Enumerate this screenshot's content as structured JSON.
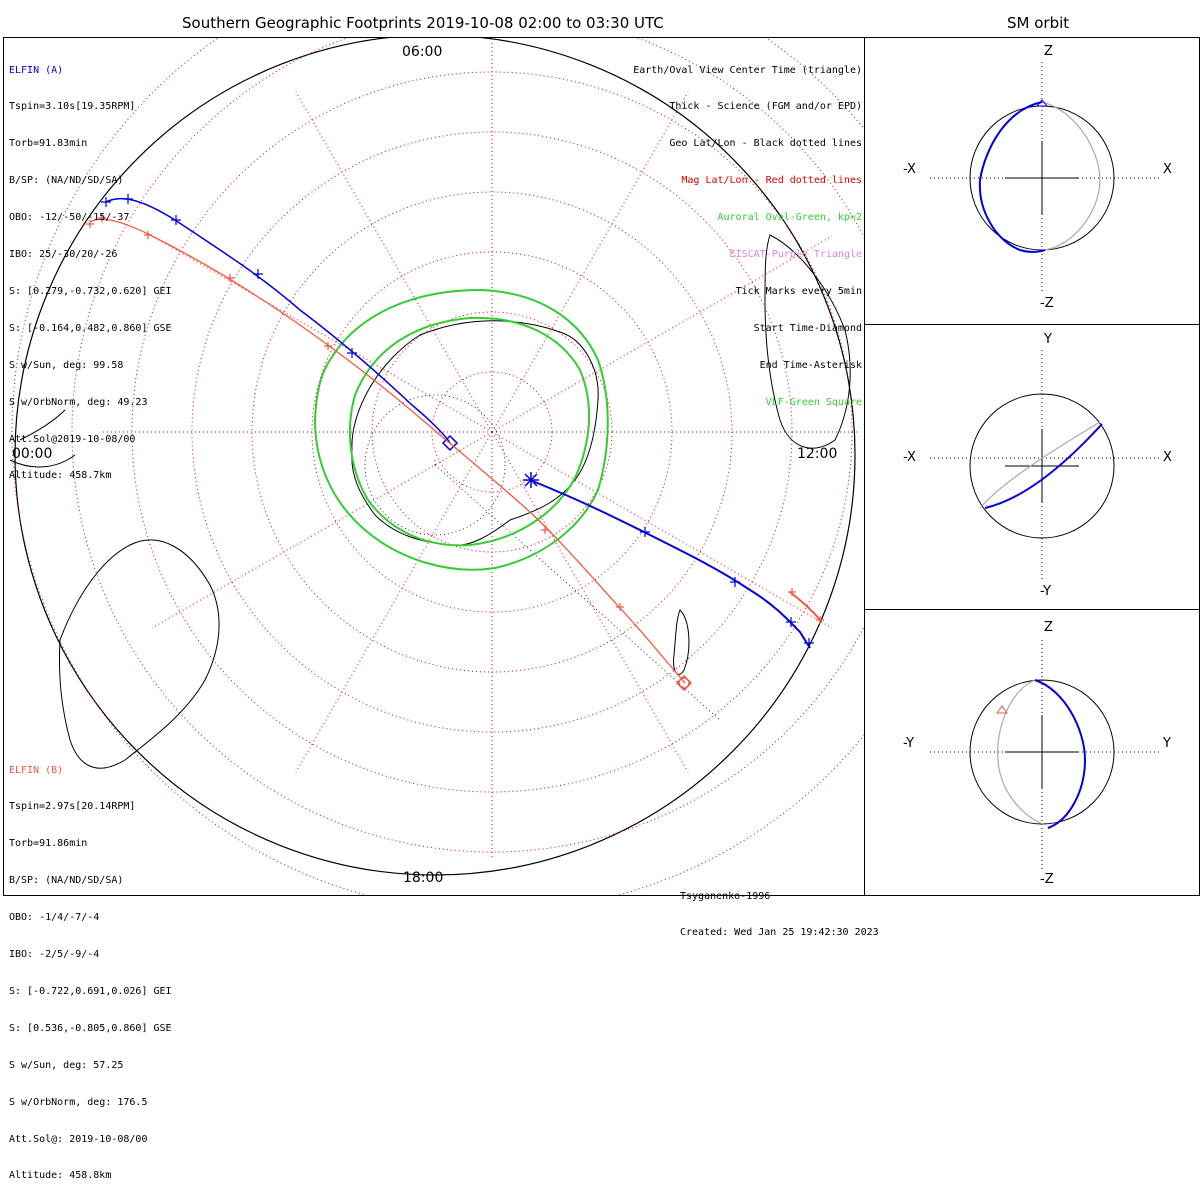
{
  "titles": {
    "main": "Southern Geographic Footprints 2019-10-08 02:00 to 03:30 UTC",
    "sm": "SM orbit"
  },
  "elfin_a": {
    "name": "ELFIN (A)",
    "lines": [
      "Tspin=3.10s[19.35RPM]",
      "Torb=91.83min",
      "B/SP: (NA/ND/SD/SA)",
      "OBO: -12/-50/-15/-37",
      "IBO: 25/-30/20/-26",
      "S: [0.279,-0.732,0.620] GEI",
      "S: [-0.164,0.482,0.860] GSE",
      "S w/Sun, deg: 99.58",
      "S w/OrbNorm, deg: 49.23",
      "Att.Sol@2019-10-08/00",
      "Altitude: 458.7km"
    ]
  },
  "elfin_b": {
    "name": "ELFIN (B)",
    "lines": [
      "Tspin=2.97s[20.14RPM]",
      "Torb=91.86min",
      "B/SP: (NA/ND/SD/SA)",
      "OBO: -1/4/-7/-4",
      "IBO: -2/5/-9/-4",
      "S: [-0.722,0.691,0.026] GEI",
      "S: [0.536,-0.805,0.860] GSE",
      "S w/Sun, deg: 57.25",
      "S w/OrbNorm, deg: 176.5",
      "Att.Sol@: 2019-10-08/00",
      "Altitude: 458.8km"
    ]
  },
  "legend": [
    {
      "text": "Earth/Oval View Center Time (triangle)",
      "color": "#000000"
    },
    {
      "text": "Thick - Science (FGM and/or EPD)",
      "color": "#000000"
    },
    {
      "text": "Geo Lat/Lon - Black dotted lines",
      "color": "#000000"
    },
    {
      "text": "Mag Lat/Lon - Red dotted lines",
      "color": "#e00000"
    },
    {
      "text": "Auroral Oval-Green, kp=2",
      "color": "#33cc33"
    },
    {
      "text": "EISCAT-Purple Triangle",
      "color": "#e080e0"
    },
    {
      "text": "Tick Marks every 5min",
      "color": "#000000"
    },
    {
      "text": "Start Time-Diamond",
      "color": "#000000"
    },
    {
      "text": "End Time-Asterisk",
      "color": "#000000"
    },
    {
      "text": "VLF-Green Square",
      "color": "#33cc33"
    }
  ],
  "clock_labels": {
    "top": "06:00",
    "left": "00:00",
    "right": "12:00",
    "bottom": "18:00"
  },
  "footer": {
    "model": "Tsyganenko-1996",
    "created": "Created: Wed Jan 25 19:42:30 2023"
  },
  "sm_panels": [
    {
      "top": "Z",
      "bottom": "-Z",
      "left": "-X",
      "right": "X"
    },
    {
      "top": "Y",
      "bottom": "-Y",
      "left": "-X",
      "right": "X"
    },
    {
      "top": "Z",
      "bottom": "-Z",
      "left": "-Y",
      "right": "Y"
    }
  ],
  "colors": {
    "elfin_a": "#0000dd",
    "elfin_b": "#f05a3c",
    "oval": "#33cc33",
    "mag_grid": "#e00000",
    "orbit_gray": "#aaaaaa"
  }
}
